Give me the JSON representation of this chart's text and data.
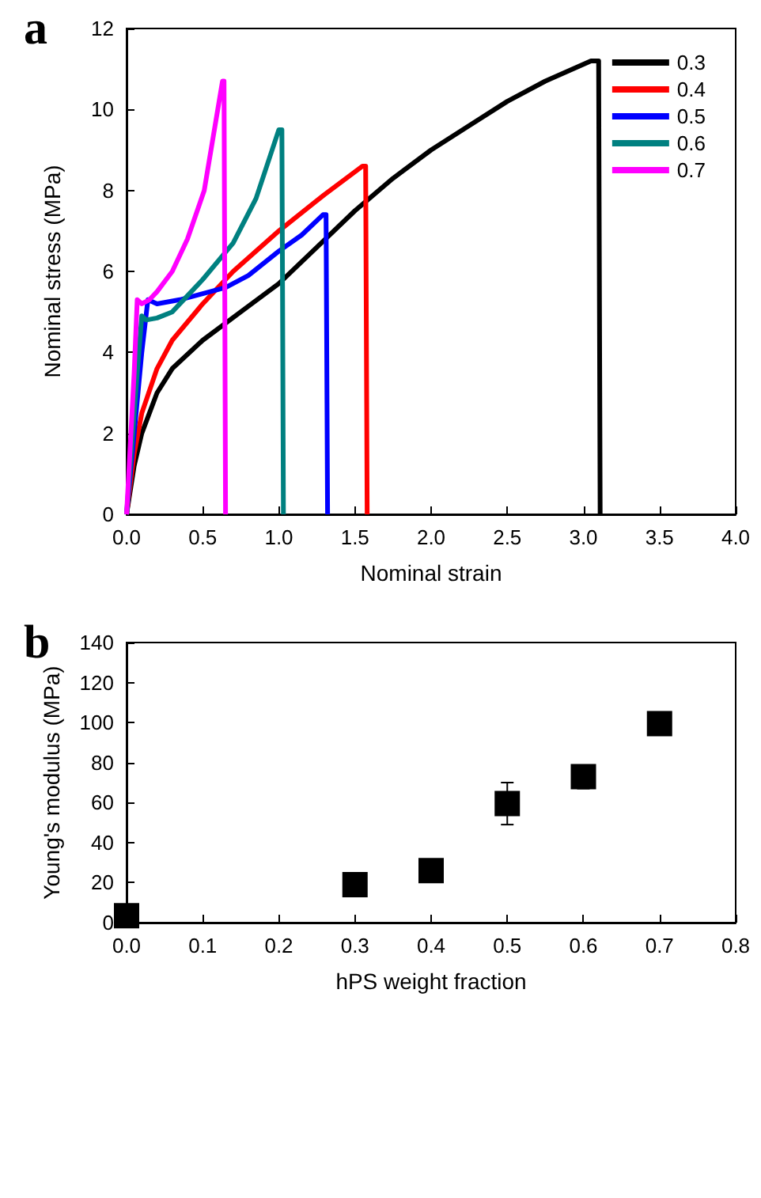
{
  "chart_data": [
    {
      "type": "line",
      "title": "a",
      "xlabel": "Nominal strain",
      "ylabel": "Nominal stress (MPa)",
      "xlim": [
        0,
        4
      ],
      "xticks": [
        {
          "value": 0,
          "label": "0.0"
        },
        0.5,
        {
          "value": 1,
          "label": "1.0"
        },
        1.5,
        {
          "value": 2,
          "label": "2.0"
        },
        2.5,
        {
          "value": 3,
          "label": "3.0"
        },
        3.5,
        {
          "value": 4,
          "label": "4.0"
        }
      ],
      "ylim": [
        0,
        12
      ],
      "yticks": [
        0,
        2,
        4,
        6,
        8,
        10,
        12
      ],
      "legend": "top right",
      "marker": "none",
      "grid": false,
      "series": [
        {
          "name": "0.3",
          "color": "#000000",
          "x": [
            0,
            0.05,
            0.1,
            0.2,
            0.3,
            0.5,
            0.75,
            1.0,
            1.25,
            1.5,
            1.75,
            2.0,
            2.25,
            2.5,
            2.75,
            3.05,
            3.1,
            3.11
          ],
          "values": [
            0,
            1.2,
            2,
            3,
            3.6,
            4.3,
            5.0,
            5.7,
            6.6,
            7.5,
            8.3,
            9.0,
            9.6,
            10.2,
            10.7,
            11.2,
            11.2,
            0
          ]
        },
        {
          "name": "0.4",
          "color": "#ff0000",
          "x": [
            0,
            0.05,
            0.1,
            0.2,
            0.3,
            0.5,
            0.7,
            1.0,
            1.3,
            1.55,
            1.57,
            1.58
          ],
          "values": [
            0,
            1.5,
            2.5,
            3.6,
            4.3,
            5.2,
            6.0,
            7.0,
            7.9,
            8.6,
            8.6,
            0
          ]
        },
        {
          "name": "0.5",
          "color": "#0000ff",
          "x": [
            0,
            0.1,
            0.14,
            0.2,
            0.35,
            0.5,
            0.65,
            0.8,
            1.0,
            1.15,
            1.29,
            1.31,
            1.32
          ],
          "values": [
            0,
            4.0,
            5.3,
            5.2,
            5.3,
            5.45,
            5.6,
            5.9,
            6.5,
            6.9,
            7.4,
            7.4,
            0
          ]
        },
        {
          "name": "0.6",
          "color": "#008080",
          "x": [
            0,
            0.07,
            0.1,
            0.13,
            0.2,
            0.3,
            0.5,
            0.7,
            0.85,
            1.0,
            1.02,
            1.03
          ],
          "values": [
            0,
            3.5,
            4.9,
            4.8,
            4.85,
            5.0,
            5.8,
            6.7,
            7.8,
            9.5,
            9.5,
            0
          ]
        },
        {
          "name": "0.7",
          "color": "#ff00ff",
          "x": [
            0,
            0.05,
            0.07,
            0.1,
            0.15,
            0.2,
            0.3,
            0.4,
            0.51,
            0.63,
            0.64,
            0.65
          ],
          "values": [
            0,
            3.5,
            5.3,
            5.2,
            5.3,
            5.5,
            6.0,
            6.8,
            8.0,
            10.7,
            10.7,
            0
          ]
        }
      ]
    },
    {
      "type": "scatter",
      "title": "b",
      "xlabel": "hPS weight fraction",
      "ylabel": "Young's modulus (MPa)",
      "xlim": [
        0,
        0.8
      ],
      "xticks": [
        {
          "value": 0,
          "label": "0.0"
        },
        0.1,
        0.2,
        0.3,
        0.4,
        0.5,
        0.6,
        0.7,
        0.8
      ],
      "ylim": [
        0,
        140
      ],
      "yticks": [
        0,
        20,
        40,
        60,
        80,
        100,
        120,
        140
      ],
      "marker": "square",
      "grid": false,
      "x": [
        0,
        0.3,
        0.4,
        0.5,
        0.6,
        0.7
      ],
      "values": [
        3.5,
        19,
        26,
        59.5,
        73,
        99.5
      ],
      "color": "#000000",
      "errors": [
        null,
        null,
        null,
        [
          49,
          70
        ],
        [
          67,
          78
        ],
        null
      ]
    }
  ]
}
